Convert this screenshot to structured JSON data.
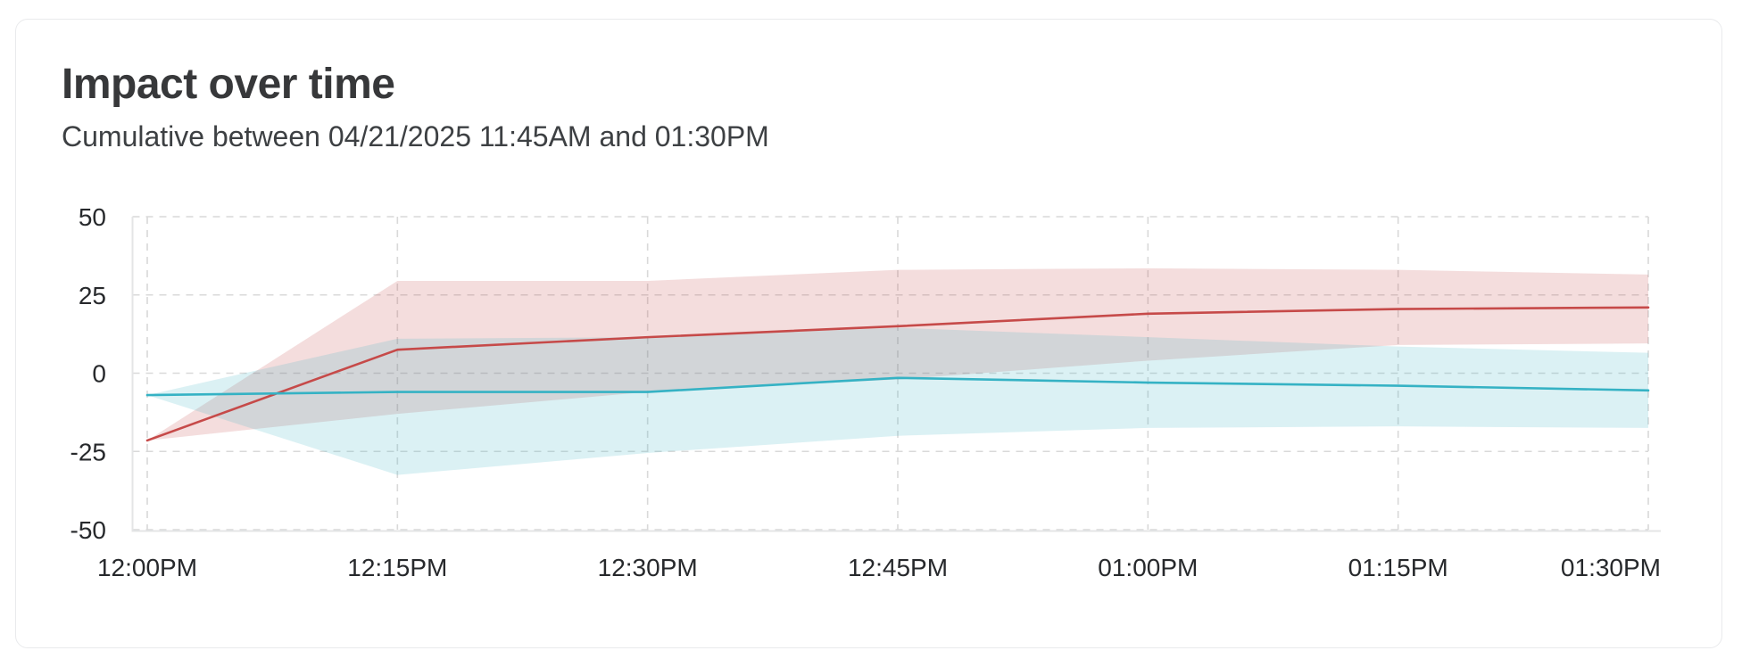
{
  "header": {
    "title": "Impact over time",
    "subtitle": "Cumulative between 04/21/2025 11:45AM and 01:30PM"
  },
  "chart_data": {
    "type": "line",
    "title": "Impact over time",
    "subtitle": "Cumulative between 04/21/2025 11:45AM and 01:30PM",
    "x": [
      "12:00PM",
      "12:15PM",
      "12:30PM",
      "12:45PM",
      "01:00PM",
      "01:15PM",
      "01:30PM"
    ],
    "y_ticks": [
      50,
      25,
      0,
      -25,
      -50
    ],
    "ylim": [
      -50,
      50
    ],
    "xlabel": "",
    "ylabel": "",
    "grid": "dashed",
    "legend": "none",
    "series": [
      {
        "name": "red",
        "color": "#c64a49",
        "band_opacity": 0.19,
        "values": [
          -21.5,
          7.5,
          11.5,
          15,
          19,
          20.5,
          21
        ],
        "band_upper": [
          -21.5,
          29.5,
          29.5,
          33,
          33.5,
          33,
          31.5
        ],
        "band_lower": [
          -21.5,
          -13,
          -6,
          -2,
          4,
          9,
          9.5
        ]
      },
      {
        "name": "cyan",
        "color": "#35b2c4",
        "band_opacity": 0.18,
        "values": [
          -7,
          -6,
          -6,
          -1.5,
          -3,
          -4,
          -5.5
        ],
        "band_upper": [
          -7,
          11,
          11.5,
          14.5,
          11.5,
          8.5,
          6.5
        ],
        "band_lower": [
          -7,
          -32.5,
          -25.5,
          -20,
          -17.5,
          -17,
          -17.5
        ]
      }
    ]
  }
}
